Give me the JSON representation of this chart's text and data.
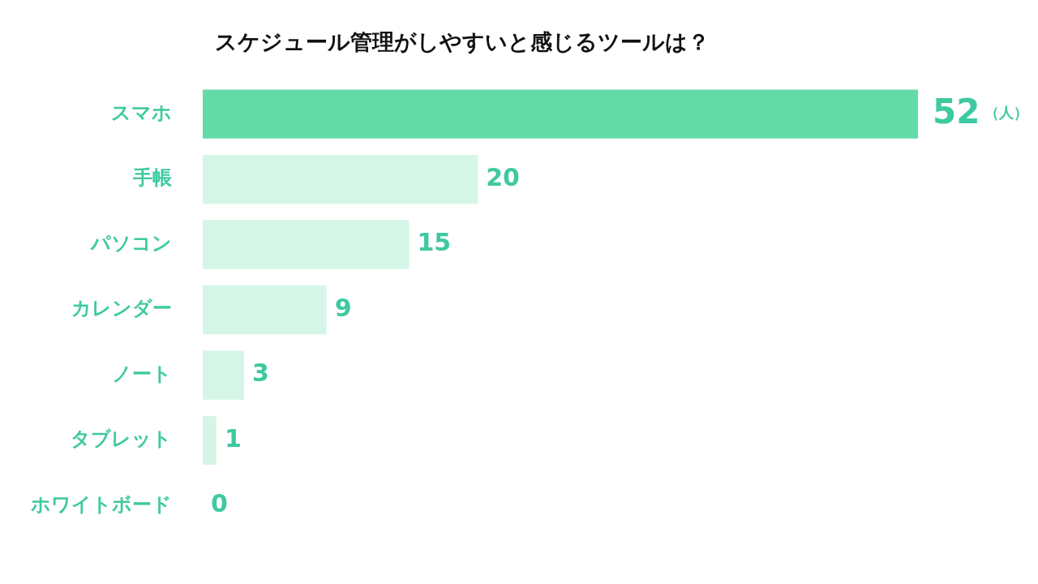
{
  "chart_data": {
    "type": "bar",
    "orientation": "horizontal",
    "title": "スケジュール管理がしやすいと感じるツールは？",
    "categories": [
      "スマホ",
      "手帳",
      "パソコン",
      "カレンダー",
      "ノート",
      "タブレット",
      "ホワイトボード"
    ],
    "values": [
      52,
      20,
      15,
      9,
      3,
      1,
      0
    ],
    "colors": [
      "#62dba8",
      "#d5f6e6",
      "#d5f6e6",
      "#d5f6e6",
      "#d5f6e6",
      "#d5f6e6",
      "#d5f6e6"
    ],
    "data_labels": true,
    "annotations": [
      "（人）"
    ],
    "legend": false
  }
}
